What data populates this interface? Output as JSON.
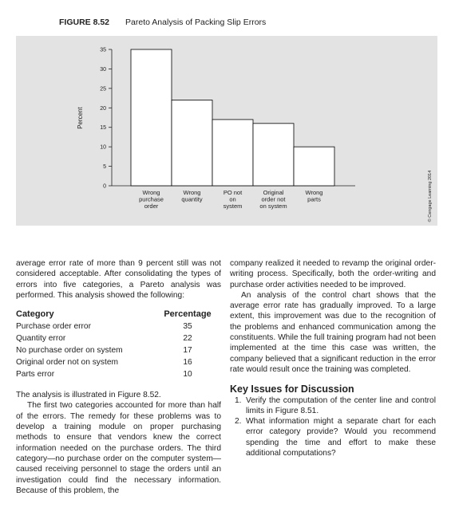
{
  "chart_data": {
    "type": "bar",
    "figure_number": "FIGURE 8.52",
    "title": "Pareto Analysis of Packing Slip Errors",
    "y_label": "Percent",
    "credit": "© Cengage Learning 2014",
    "categories": [
      "Wrong\npurchase\norder",
      "Wrong\nquantity",
      "PO not\non\nsystem",
      "Original\norder not\non system",
      "Wrong\nparts"
    ],
    "values": [
      35,
      22,
      17,
      16,
      10
    ],
    "color": "#ffffff",
    "edge_color": "#000000",
    "ylim": [
      0,
      35
    ],
    "yticks": [
      0,
      5,
      10,
      15,
      20,
      25,
      30,
      35
    ],
    "grid": false
  },
  "left_column": {
    "intro": "average error rate of more than 9 percent still was not considered acceptable. After consolidating the types of errors into five categories, a Pareto analysis was performed. This analysis showed the following:",
    "table": {
      "headers": [
        "Category",
        "Percentage"
      ],
      "rows": [
        "Purchase order error",
        "Quantity error",
        "No purchase order on system",
        "Original order not on system",
        "Parts error"
      ]
    },
    "after_table": "The analysis is illustrated in Figure 8.52.",
    "paragraph": "The first two categories accounted for more than half of the errors. The remedy for these problems was to develop a training module on proper purchasing methods to ensure that vendors knew the correct information needed on the purchase orders. The third category—no purchase order on the computer system—caused receiving personnel to stage the orders until an investigation could find the necessary information. Because of this problem, the"
  },
  "right_column": {
    "continuation": "company realized it needed to revamp the original order-writing process. Specifically, both the order-writing and purchase order activities needed to be improved.",
    "paragraph": "An analysis of the control chart shows that the average error rate has gradually improved. To a large extent, this improvement was due to the recognition of the problems and enhanced communication among the constituents. While the full training program had not been implemented at the time this case was written, the company believed that a significant reduction in the error rate would result once the training was completed.",
    "heading": "Key Issues for Discussion",
    "items": [
      {
        "number": "1.",
        "text": "Verify the computation of the center line and control limits in Figure 8.51."
      },
      {
        "number": "2.",
        "text": "What information might a separate chart for each error category provide? Would you recommend spending the time and effort to make these additional computations?"
      }
    ]
  }
}
